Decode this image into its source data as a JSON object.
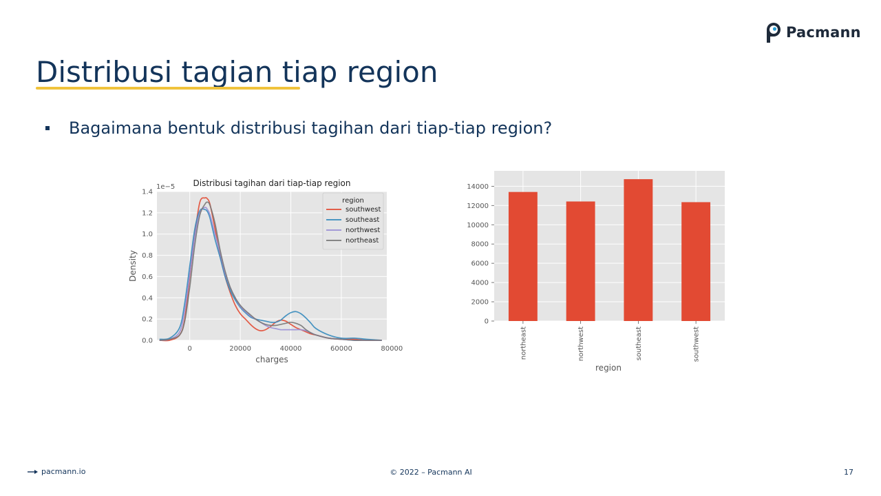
{
  "brand": {
    "name": "Pacmann",
    "accent": "#f0c33c",
    "primary": "#13345a"
  },
  "slide": {
    "title": "Distribusi tagian tiap region",
    "bullet": "Bagaimana bentuk distribusi tagihan dari tiap-tiap region?"
  },
  "footer": {
    "link": "pacmann.io",
    "copyright": "© 2022 – Pacmann AI",
    "page": "17"
  },
  "chart_data": [
    {
      "type": "line",
      "title": "Distribusi tagihan dari tiap-tiap region",
      "xlabel": "charges",
      "ylabel": "Density",
      "y_scale_label": "1e−5",
      "xlim": [
        -13000,
        78000
      ],
      "ylim": [
        0,
        1.4
      ],
      "x_ticks": [
        0,
        20000,
        40000,
        60000,
        80000
      ],
      "y_ticks": [
        0.0,
        0.2,
        0.4,
        0.6,
        0.8,
        1.0,
        1.2,
        1.4
      ],
      "grid": true,
      "legend": {
        "title": "region",
        "position": "top-right"
      },
      "x": [
        -12000,
        -8000,
        -4000,
        -2000,
        0,
        2000,
        4000,
        6000,
        7000,
        8000,
        10000,
        12000,
        14000,
        16000,
        18000,
        20000,
        22000,
        24000,
        26000,
        28000,
        30000,
        32000,
        34000,
        36000,
        38000,
        40000,
        42000,
        44000,
        46000,
        48000,
        50000,
        55000,
        60000,
        65000,
        70000,
        76000
      ],
      "series": [
        {
          "name": "southwest",
          "color": "#e24a33",
          "values": [
            0.0,
            0.0,
            0.05,
            0.2,
            0.6,
            1.0,
            1.3,
            1.34,
            1.33,
            1.28,
            1.05,
            0.8,
            0.6,
            0.45,
            0.33,
            0.25,
            0.2,
            0.15,
            0.11,
            0.09,
            0.1,
            0.13,
            0.17,
            0.19,
            0.18,
            0.15,
            0.12,
            0.1,
            0.08,
            0.06,
            0.05,
            0.02,
            0.01,
            0.01,
            0.0,
            0.0
          ]
        },
        {
          "name": "southeast",
          "color": "#348abd",
          "values": [
            0.01,
            0.02,
            0.12,
            0.35,
            0.7,
            1.05,
            1.22,
            1.23,
            1.21,
            1.15,
            0.95,
            0.78,
            0.6,
            0.47,
            0.38,
            0.31,
            0.26,
            0.22,
            0.2,
            0.19,
            0.18,
            0.17,
            0.17,
            0.19,
            0.23,
            0.26,
            0.27,
            0.25,
            0.21,
            0.16,
            0.11,
            0.05,
            0.02,
            0.02,
            0.01,
            0.0
          ]
        },
        {
          "name": "northwest",
          "color": "#988ed5",
          "values": [
            0.0,
            0.01,
            0.08,
            0.28,
            0.62,
            0.98,
            1.2,
            1.25,
            1.23,
            1.18,
            1.0,
            0.82,
            0.63,
            0.5,
            0.4,
            0.32,
            0.27,
            0.23,
            0.2,
            0.17,
            0.14,
            0.12,
            0.11,
            0.1,
            0.1,
            0.1,
            0.1,
            0.1,
            0.09,
            0.07,
            0.05,
            0.02,
            0.01,
            0.0,
            0.0,
            0.0
          ]
        },
        {
          "name": "northeast",
          "color": "#777777",
          "values": [
            0.0,
            0.01,
            0.05,
            0.18,
            0.5,
            0.9,
            1.18,
            1.28,
            1.3,
            1.27,
            1.1,
            0.85,
            0.65,
            0.5,
            0.4,
            0.33,
            0.28,
            0.24,
            0.2,
            0.17,
            0.15,
            0.14,
            0.14,
            0.15,
            0.16,
            0.17,
            0.16,
            0.14,
            0.1,
            0.07,
            0.05,
            0.02,
            0.01,
            0.0,
            0.0,
            0.0
          ]
        }
      ]
    },
    {
      "type": "bar",
      "title": "",
      "xlabel": "region",
      "ylabel": "",
      "ylim": [
        0,
        15600
      ],
      "y_ticks": [
        0,
        2000,
        4000,
        6000,
        8000,
        10000,
        12000,
        14000
      ],
      "grid": true,
      "color": "#e24a33",
      "categories": [
        "northeast",
        "northwest",
        "southeast",
        "southwest"
      ],
      "values": [
        13406,
        12418,
        14735,
        12347
      ]
    }
  ]
}
